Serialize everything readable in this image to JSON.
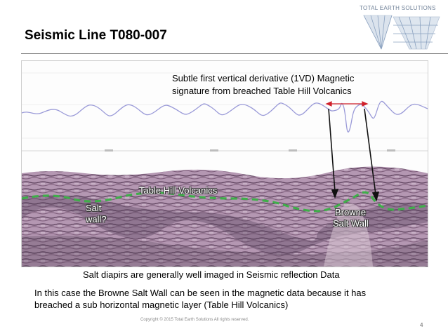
{
  "slide": {
    "title": "Seismic Line T080-007",
    "logo_text": "TOTAL EARTH SOLUTIONS",
    "annotation_line1": "Subtle first vertical derivative (1VD) Magnetic",
    "annotation_line2": "signature from breached Table Hill Volcanics",
    "label_table_hill": "Table Hill Volcanics",
    "label_salt_1": "Salt",
    "label_salt_2": "wall?",
    "label_browne_1": "Browne",
    "label_browne_2": "Salt Wall",
    "caption": "Salt diapirs are generally well imaged in Seismic reflection Data",
    "body_line1": "In this case the Browne Salt Wall can be seen in the magnetic data because it has",
    "body_line2": "breached a sub horizontal magnetic layer (Table Hill Volcanics)",
    "copyright": "Copyright © 2015 Total Earth Solutions All rights reserved.",
    "page_number": "4"
  },
  "colors": {
    "magnetic_curve": "#9a9ad8",
    "seismic_base": "#a98aa8",
    "horizon_dash": "#3fae4a",
    "arrow_red": "#d0202a",
    "arrow_black": "#111111"
  }
}
